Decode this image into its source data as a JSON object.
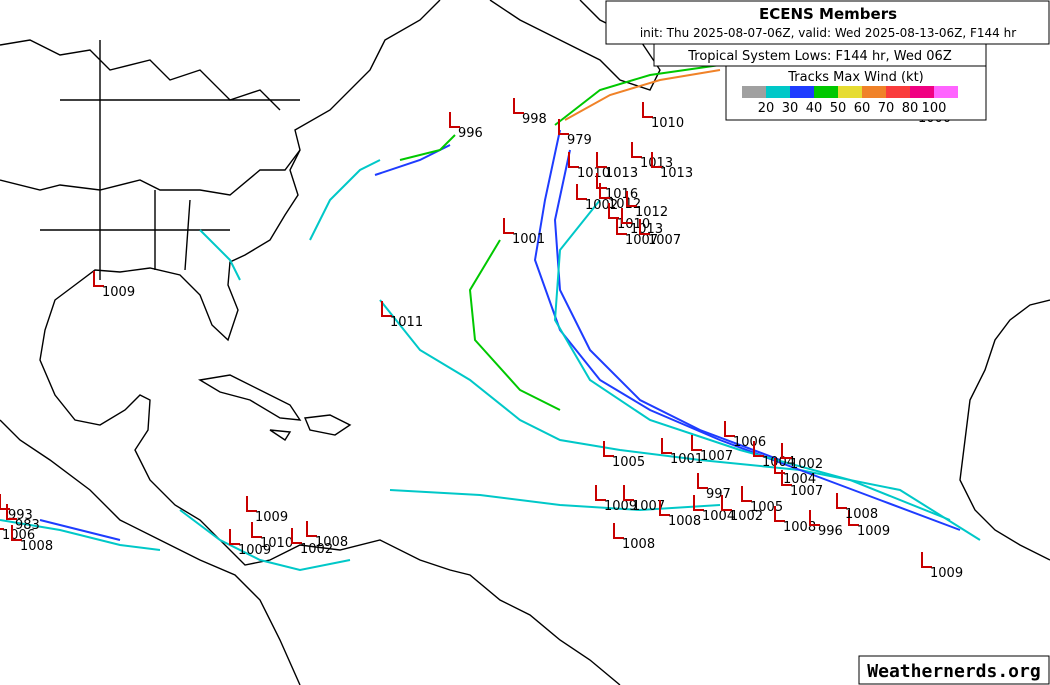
{
  "header": {
    "title": "ECENS Members",
    "subtitle": "init: Thu 2025-08-07-06Z, valid: Wed 2025-08-13-06Z, F144 hr",
    "lows_title": "Tropical System Lows: F144 hr, Wed 06Z"
  },
  "legend": {
    "title": "Tracks Max Wind (kt)",
    "colors": [
      "#a0a0a0",
      "#00c8c8",
      "#1e3cff",
      "#00c800",
      "#e6dc32",
      "#f08228",
      "#fa3c3c",
      "#f00082",
      "#ff64ff"
    ],
    "values": [
      20,
      30,
      40,
      50,
      60,
      70,
      80,
      100
    ]
  },
  "lows": [
    "996",
    "998",
    "979",
    "1010",
    "1013",
    "1013",
    "1010",
    "1013",
    "1016",
    "1002",
    "1012",
    "1012",
    "1010",
    "1013",
    "1007",
    "1007",
    "1001",
    "1009",
    "1011",
    "1000",
    "1006",
    "1005",
    "1001",
    "1007",
    "1004",
    "1002",
    "1004",
    "1009",
    "1007",
    "1008",
    "1004",
    "1002",
    "1005",
    "1007",
    "997",
    "1008",
    "996",
    "1009",
    "1008",
    "1008",
    "1009",
    "993",
    "983",
    "1006",
    "1008",
    "1009",
    "1009",
    "1010",
    "1002",
    "1008"
  ],
  "watermark": "Weathernerds.org"
}
